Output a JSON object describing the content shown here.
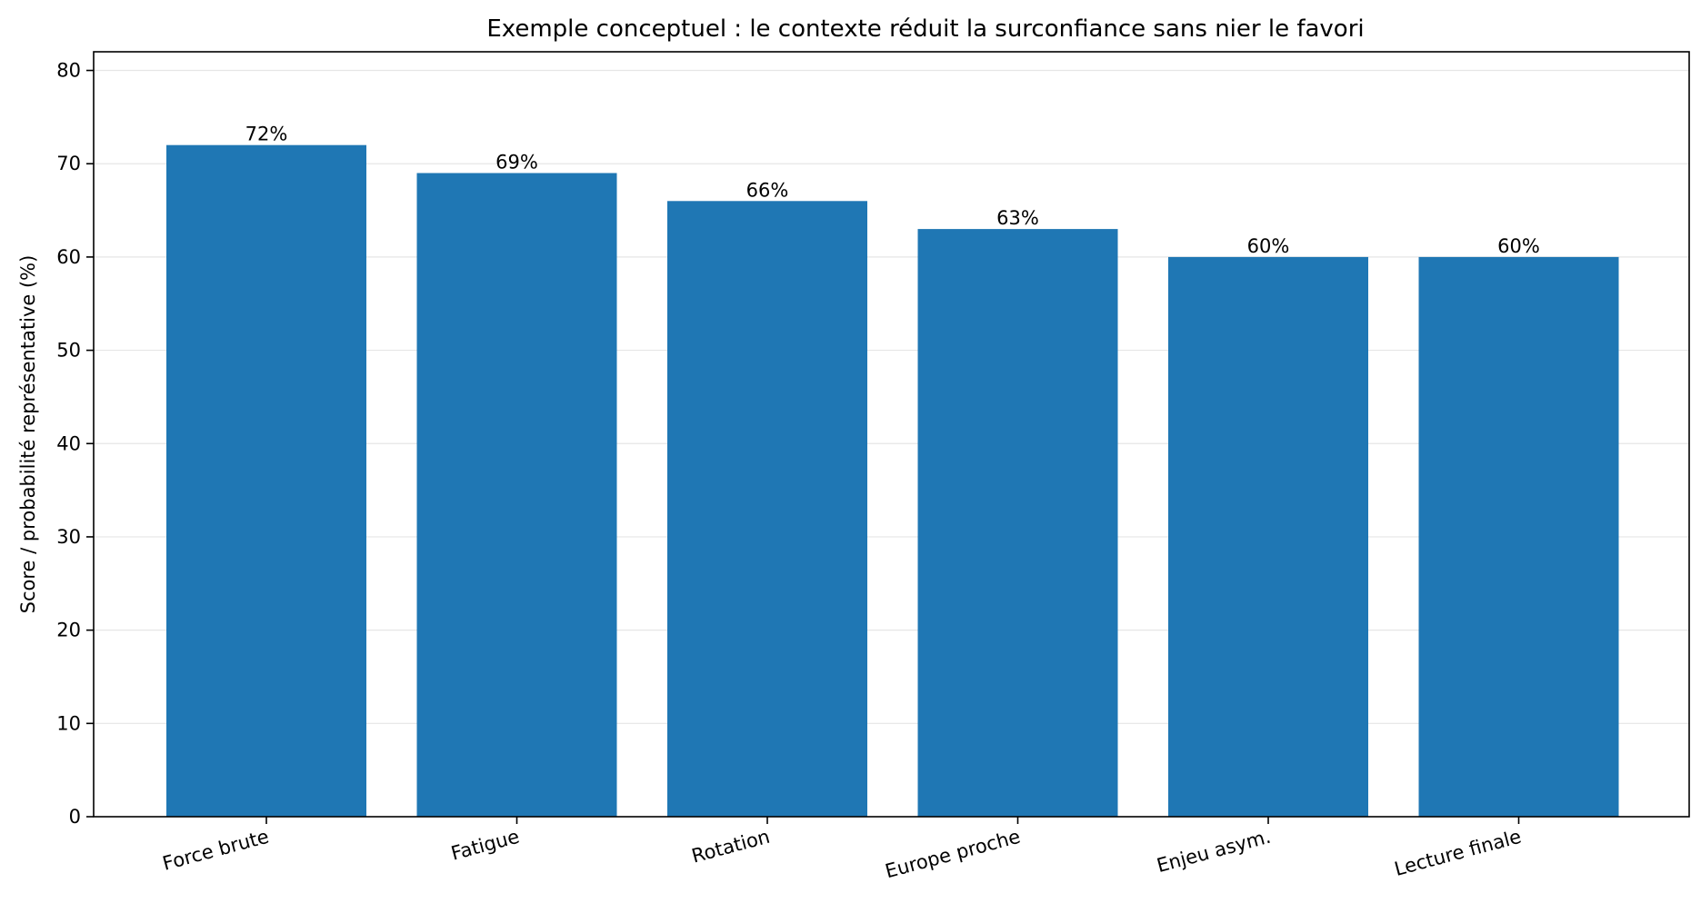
{
  "chart_data": {
    "type": "bar",
    "title": "Exemple conceptuel : le contexte réduit la surconfiance sans nier le favori",
    "xlabel": "",
    "ylabel": "Score / probabilité représentative (%)",
    "categories": [
      "Force brute",
      "Fatigue",
      "Rotation",
      "Europe proche",
      "Enjeu asym.",
      "Lecture finale"
    ],
    "values": [
      72,
      69,
      66,
      63,
      60,
      60
    ],
    "data_labels": [
      "72%",
      "69%",
      "66%",
      "63%",
      "60%",
      "60%"
    ],
    "ylim": [
      0,
      82
    ],
    "yticks": [
      0,
      10,
      20,
      30,
      40,
      50,
      60,
      70,
      80
    ],
    "grid": "y-axis, light",
    "bar_color": "#1f77b4",
    "x_tick_rotation_deg": 15
  }
}
